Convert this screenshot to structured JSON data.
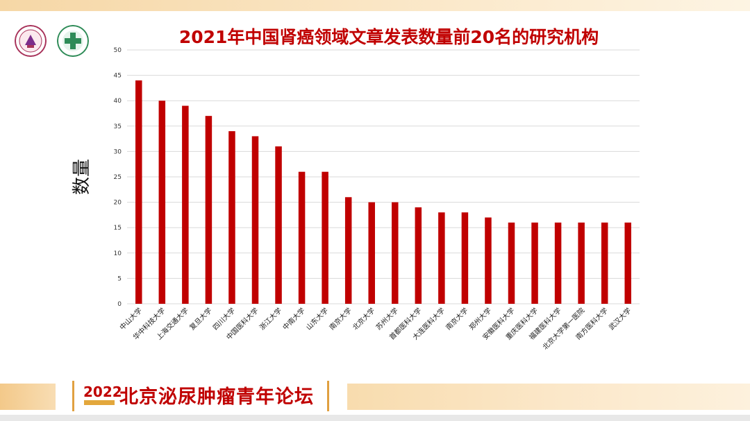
{
  "colors": {
    "bar": "#c00000",
    "grid": "#d9d9d9",
    "title": "#c00000"
  },
  "logos": [
    "university-seal-icon",
    "hospital-logo-icon"
  ],
  "footer": {
    "year": "2022",
    "forum_name": "北京泌尿肿瘤青年论坛"
  },
  "chart_data": {
    "type": "bar",
    "title": "2021年中国肾癌领域文章发表数量前20名的研究机构",
    "xlabel": "",
    "ylabel": "数量",
    "ylim": [
      0,
      50
    ],
    "yticks": [
      0,
      5,
      10,
      15,
      20,
      25,
      30,
      35,
      40,
      45,
      50
    ],
    "grid": true,
    "categories": [
      "中山大学",
      "华中科技大学",
      "上海交通大学",
      "复旦大学",
      "四川大学",
      "中国医科大学",
      "浙江大学",
      "中南大学",
      "山东大学",
      "南京大学",
      "北京大学",
      "苏州大学",
      "首都医科大学",
      "大连医科大学",
      "南京大学",
      "郑州大学",
      "安徽医科大学",
      "重庆医科大学",
      "福建医科大学",
      "北京大学第一医院",
      "南方医科大学",
      "武汉大学"
    ],
    "values": [
      44,
      40,
      39,
      37,
      34,
      33,
      31,
      26,
      26,
      21,
      20,
      20,
      19,
      18,
      18,
      17,
      16,
      16,
      16,
      16,
      16,
      16
    ]
  }
}
